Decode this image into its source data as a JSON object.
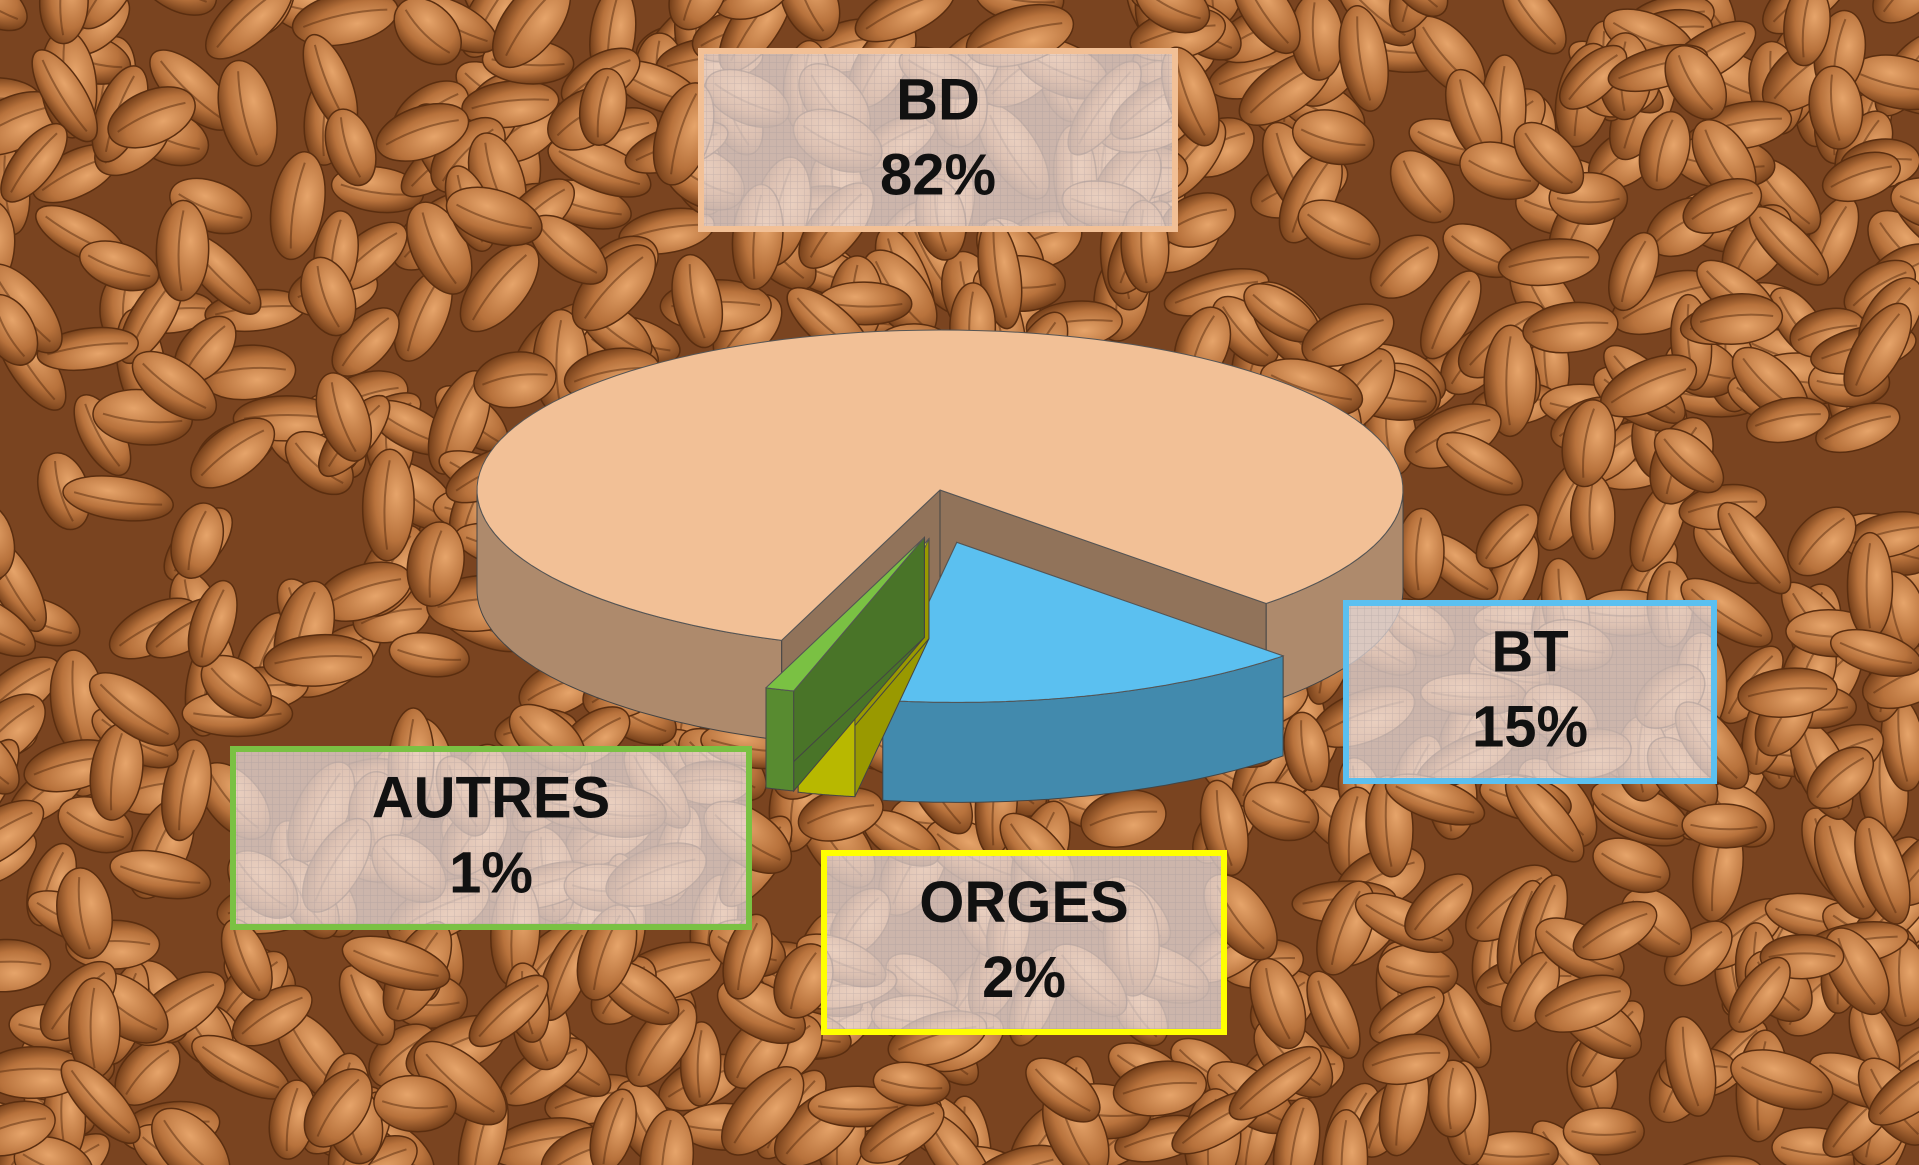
{
  "chart_data": {
    "type": "pie3d",
    "categories": [
      "BD",
      "BT",
      "ORGES",
      "AUTRES"
    ],
    "values": [
      82,
      15,
      2,
      1
    ],
    "value_labels": [
      "82%",
      "15%",
      "2%",
      "1%"
    ],
    "colors": [
      "#f2c096",
      "#5bc0f0",
      "#ffff00",
      "#7ac143"
    ]
  }
}
